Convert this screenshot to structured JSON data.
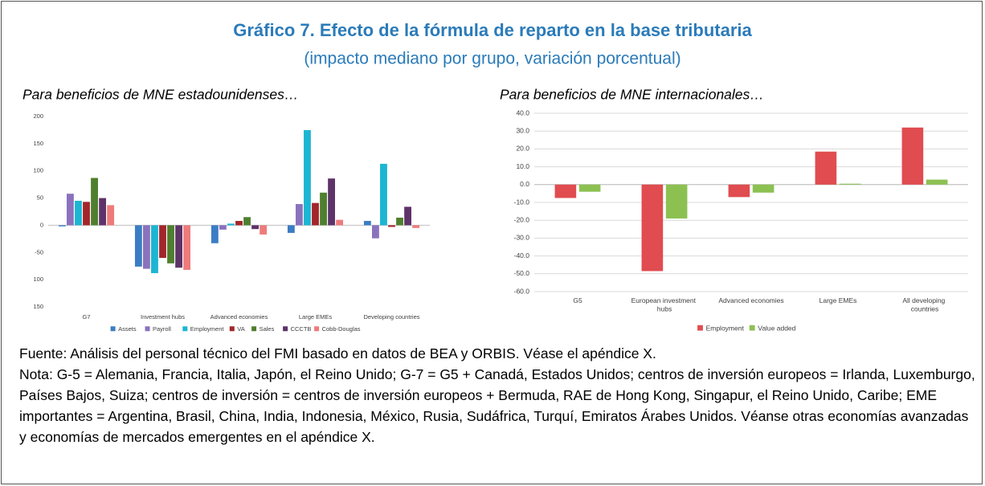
{
  "header": {
    "title": "Gráfico 7. Efecto de la fórmula de reparto en la base tributaria",
    "subtitle": "(impacto mediano por grupo, variación porcentual)"
  },
  "chart_data": [
    {
      "type": "bar",
      "title": "Para beneficios de MNE estadounidenses…",
      "categories": [
        "G7",
        "Investment hubs",
        "Advanced economies",
        "Large EMEs",
        "Developing countries"
      ],
      "series": [
        {
          "name": "Assets",
          "color": "#3b7dc4",
          "values": [
            -2,
            -76,
            -33,
            -14,
            8
          ]
        },
        {
          "name": "Payroll",
          "color": "#8a72bd",
          "values": [
            58,
            -80,
            -8,
            39,
            -24
          ]
        },
        {
          "name": "Employment",
          "color": "#1cb6d2",
          "values": [
            45,
            -88,
            3,
            175,
            113
          ]
        },
        {
          "name": "VA",
          "color": "#a3262c",
          "values": [
            43,
            -60,
            8,
            41,
            -3
          ]
        },
        {
          "name": "Sales",
          "color": "#4f7f2e",
          "values": [
            87,
            -70,
            15,
            60,
            14
          ]
        },
        {
          "name": "CCCTB",
          "color": "#5e3369",
          "values": [
            50,
            -78,
            -7,
            86,
            34
          ]
        },
        {
          "name": "Cobb-Douglas",
          "color": "#ee7b7b",
          "values": [
            37,
            -82,
            -17,
            10,
            -5
          ]
        }
      ],
      "ylim": [
        -150,
        200
      ],
      "yticks": [
        200,
        150,
        100,
        50,
        0,
        -50,
        {
          "value": -100,
          "label": "100"
        },
        {
          "value": -150,
          "label": "150"
        }
      ],
      "grid": false,
      "legend": "bottom"
    },
    {
      "type": "bar",
      "title": "Para beneficios de MNE internacionales…",
      "categories": [
        "G5",
        "European investment hubs",
        "Advanced economies",
        "Large EMEs",
        "All developing countries"
      ],
      "series": [
        {
          "name": "Employment",
          "color": "#e04c4f",
          "values": [
            -7.5,
            -48.5,
            -7,
            18.5,
            32
          ]
        },
        {
          "name": "Value added",
          "color": "#8cc152",
          "values": [
            -4,
            -19,
            -4.5,
            0.5,
            2.8
          ]
        }
      ],
      "ylim": [
        -60,
        40
      ],
      "yticks": [
        {
          "value": 40,
          "label": "40.0"
        },
        {
          "value": 30,
          "label": "30.0"
        },
        {
          "value": 20,
          "label": "20.0"
        },
        {
          "value": 10,
          "label": "10.0"
        },
        {
          "value": 0,
          "label": "0.0"
        },
        {
          "value": -10,
          "label": "-10.0"
        },
        {
          "value": -20,
          "label": "-20.0"
        },
        {
          "value": -30,
          "label": "-30.0"
        },
        {
          "value": -40,
          "label": "-40.0"
        },
        {
          "value": -50,
          "label": "-50.0"
        },
        {
          "value": -60,
          "label": "-60.0"
        }
      ],
      "grid": true,
      "legend": "bottom"
    }
  ],
  "footer": {
    "source": "Fuente: Análisis del personal técnico del FMI basado en datos de BEA y ORBIS. Véase el apéndice X.",
    "note": "Nota: G-5 = Alemania, Francia, Italia, Japón, el Reino Unido; G-7 = G5 + Canadá, Estados Unidos; centros de inversión europeos = Irlanda, Luxemburgo, Países Bajos, Suiza; centros de inversión = centros de inversión europeos + Bermuda, RAE de Hong Kong, Singapur, el Reino Unido, Caribe; EME importantes = Argentina, Brasil, China, India, Indonesia, México, Rusia, Sudáfrica, Turquí, Emiratos Árabes Unidos. Véanse otras economías avanzadas y economías de mercados emergentes en el apéndice X."
  }
}
